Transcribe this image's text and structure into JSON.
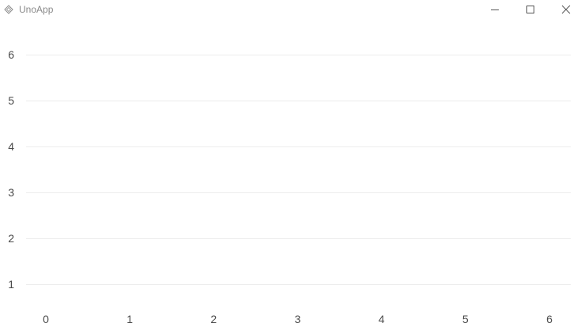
{
  "window": {
    "title": "UnoApp",
    "icon": "uno-diamond-icon",
    "controls": {
      "minimize": "minimize-icon",
      "maximize": "maximize-icon",
      "close": "close-icon"
    }
  },
  "chart_data": {
    "type": "line",
    "title": "",
    "xlabel": "",
    "ylabel": "",
    "x_ticks": [
      "0",
      "1",
      "2",
      "3",
      "4",
      "5",
      "6"
    ],
    "y_ticks": [
      "1",
      "2",
      "3",
      "4",
      "5",
      "6"
    ],
    "xlim": [
      0,
      6
    ],
    "ylim": [
      1,
      6
    ],
    "grid": "horizontal",
    "series": [],
    "colors": {
      "grid": "#ececec",
      "tick_label": "#4a4a4a"
    }
  }
}
